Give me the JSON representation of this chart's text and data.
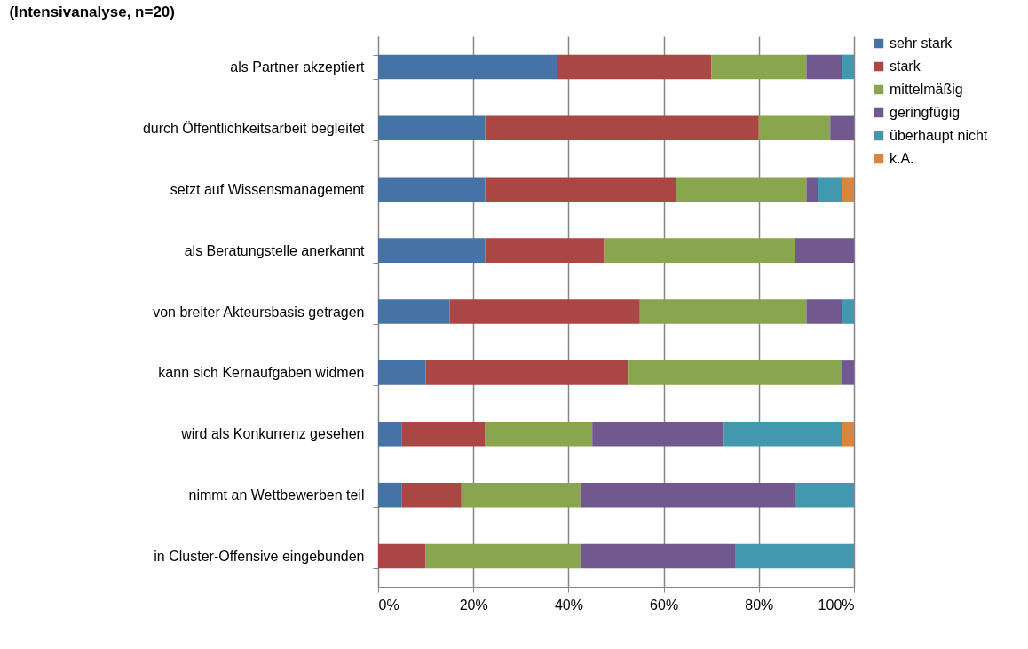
{
  "chart_data": {
    "type": "bar",
    "orientation": "horizontal",
    "stacked": true,
    "title": "(Intensivanalyse, n=20)",
    "categories": [
      "als Partner akzeptiert",
      "durch Öffentlichkeitsarbeit begleitet",
      "setzt auf Wissensmanagement",
      "als Beratungstelle anerkannt",
      "von breiter Akteursbasis getragen",
      "kann sich Kernaufgaben widmen",
      "wird als Konkurrenz gesehen",
      "nimmt an Wettbewerben teil",
      "in Cluster-Offensive eingebunden"
    ],
    "series": [
      {
        "name": "sehr stark",
        "color": "#4572a7",
        "values": [
          37.5,
          22.5,
          22.5,
          22.5,
          15,
          10,
          5,
          5,
          null
        ]
      },
      {
        "name": "stark",
        "color": "#aa4643",
        "values": [
          32.5,
          57.5,
          40,
          25,
          40,
          42.5,
          17.5,
          12.5,
          10
        ]
      },
      {
        "name": "mittelmäßig",
        "color": "#89a54e",
        "values": [
          20,
          15,
          27.5,
          40,
          35,
          45,
          22.5,
          25,
          32.5
        ]
      },
      {
        "name": "geringfügig",
        "color": "#71588f",
        "values": [
          7.5,
          5,
          2.5,
          12.5,
          7.5,
          2.5,
          27.5,
          45,
          32.5
        ]
      },
      {
        "name": "überhaupt nicht",
        "color": "#4198af",
        "values": [
          2.5,
          null,
          5,
          null,
          2.5,
          null,
          25,
          12.5,
          25
        ]
      },
      {
        "name": "k.A.",
        "color": "#db843d",
        "values": [
          null,
          null,
          2.5,
          null,
          null,
          null,
          2.5,
          null,
          null
        ]
      }
    ],
    "xlim": [
      0,
      100
    ],
    "xticks": [
      {
        "value": 0,
        "label": "0%"
      },
      {
        "value": 20,
        "label": "20%"
      },
      {
        "value": 40,
        "label": "40%"
      },
      {
        "value": 60,
        "label": "60%"
      },
      {
        "value": 80,
        "label": "80%"
      },
      {
        "value": 100,
        "label": "100%"
      }
    ],
    "grid": "x",
    "legend": "right"
  }
}
